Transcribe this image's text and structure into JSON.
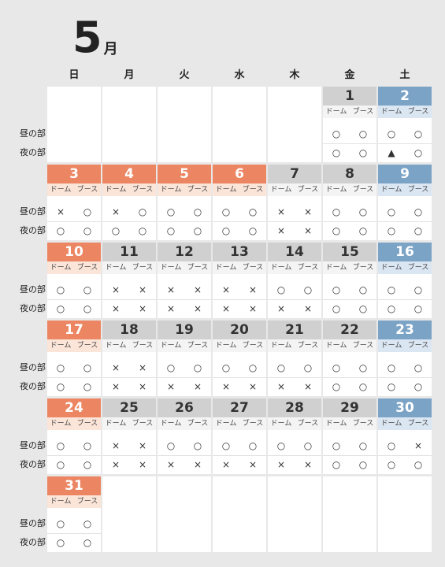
{
  "header": {
    "month_number": "5",
    "month_unit": "月"
  },
  "weekdays": [
    "日",
    "月",
    "火",
    "水",
    "木",
    "金",
    "土"
  ],
  "labels": {
    "day": "昼の部",
    "night": "夜の部",
    "dome": "ドーム",
    "booth": "ブース"
  },
  "colors": {
    "holiday": "#ec8562",
    "saturday": "#7ba3c6",
    "weekday": "#d0d0d0"
  },
  "weeks": [
    [
      null,
      null,
      null,
      null,
      null,
      {
        "date": "1",
        "type": "normal",
        "day": [
          "○",
          "○"
        ],
        "night": [
          "○",
          "○"
        ]
      },
      {
        "date": "2",
        "type": "sat",
        "day": [
          "○",
          "○"
        ],
        "night": [
          "▲",
          "○"
        ]
      }
    ],
    [
      {
        "date": "3",
        "type": "holiday",
        "day": [
          "×",
          "○"
        ],
        "night": [
          "○",
          "○"
        ]
      },
      {
        "date": "4",
        "type": "holiday",
        "day": [
          "×",
          "○"
        ],
        "night": [
          "○",
          "○"
        ]
      },
      {
        "date": "5",
        "type": "holiday",
        "day": [
          "○",
          "○"
        ],
        "night": [
          "○",
          "○"
        ]
      },
      {
        "date": "6",
        "type": "holiday",
        "day": [
          "○",
          "○"
        ],
        "night": [
          "○",
          "○"
        ]
      },
      {
        "date": "7",
        "type": "normal",
        "day": [
          "×",
          "×"
        ],
        "night": [
          "×",
          "×"
        ]
      },
      {
        "date": "8",
        "type": "normal",
        "day": [
          "○",
          "○"
        ],
        "night": [
          "○",
          "○"
        ]
      },
      {
        "date": "9",
        "type": "sat",
        "day": [
          "○",
          "○"
        ],
        "night": [
          "○",
          "○"
        ]
      }
    ],
    [
      {
        "date": "10",
        "type": "holiday",
        "day": [
          "○",
          "○"
        ],
        "night": [
          "○",
          "○"
        ]
      },
      {
        "date": "11",
        "type": "normal",
        "day": [
          "×",
          "×"
        ],
        "night": [
          "×",
          "×"
        ]
      },
      {
        "date": "12",
        "type": "normal",
        "day": [
          "×",
          "×"
        ],
        "night": [
          "×",
          "×"
        ]
      },
      {
        "date": "13",
        "type": "normal",
        "day": [
          "×",
          "×"
        ],
        "night": [
          "×",
          "×"
        ]
      },
      {
        "date": "14",
        "type": "normal",
        "day": [
          "○",
          "○"
        ],
        "night": [
          "×",
          "×"
        ]
      },
      {
        "date": "15",
        "type": "normal",
        "day": [
          "○",
          "○"
        ],
        "night": [
          "○",
          "○"
        ]
      },
      {
        "date": "16",
        "type": "sat",
        "day": [
          "○",
          "○"
        ],
        "night": [
          "○",
          "○"
        ]
      }
    ],
    [
      {
        "date": "17",
        "type": "holiday",
        "day": [
          "○",
          "○"
        ],
        "night": [
          "○",
          "○"
        ]
      },
      {
        "date": "18",
        "type": "normal",
        "day": [
          "×",
          "×"
        ],
        "night": [
          "×",
          "×"
        ]
      },
      {
        "date": "19",
        "type": "normal",
        "day": [
          "○",
          "○"
        ],
        "night": [
          "×",
          "×"
        ]
      },
      {
        "date": "20",
        "type": "normal",
        "day": [
          "○",
          "○"
        ],
        "night": [
          "×",
          "×"
        ]
      },
      {
        "date": "21",
        "type": "normal",
        "day": [
          "○",
          "○"
        ],
        "night": [
          "×",
          "×"
        ]
      },
      {
        "date": "22",
        "type": "normal",
        "day": [
          "○",
          "○"
        ],
        "night": [
          "○",
          "○"
        ]
      },
      {
        "date": "23",
        "type": "sat",
        "day": [
          "○",
          "○"
        ],
        "night": [
          "○",
          "○"
        ]
      }
    ],
    [
      {
        "date": "24",
        "type": "holiday",
        "day": [
          "○",
          "○"
        ],
        "night": [
          "○",
          "○"
        ]
      },
      {
        "date": "25",
        "type": "normal",
        "day": [
          "×",
          "×"
        ],
        "night": [
          "×",
          "×"
        ]
      },
      {
        "date": "26",
        "type": "normal",
        "day": [
          "○",
          "○"
        ],
        "night": [
          "×",
          "×"
        ]
      },
      {
        "date": "27",
        "type": "normal",
        "day": [
          "○",
          "○"
        ],
        "night": [
          "×",
          "×"
        ]
      },
      {
        "date": "28",
        "type": "normal",
        "day": [
          "○",
          "○"
        ],
        "night": [
          "×",
          "×"
        ]
      },
      {
        "date": "29",
        "type": "normal",
        "day": [
          "○",
          "○"
        ],
        "night": [
          "○",
          "○"
        ]
      },
      {
        "date": "30",
        "type": "sat",
        "day": [
          "○",
          "×"
        ],
        "night": [
          "○",
          "○"
        ]
      }
    ],
    [
      {
        "date": "31",
        "type": "holiday",
        "day": [
          "○",
          "○"
        ],
        "night": [
          "○",
          "○"
        ]
      },
      null,
      null,
      null,
      null,
      null,
      null
    ]
  ]
}
